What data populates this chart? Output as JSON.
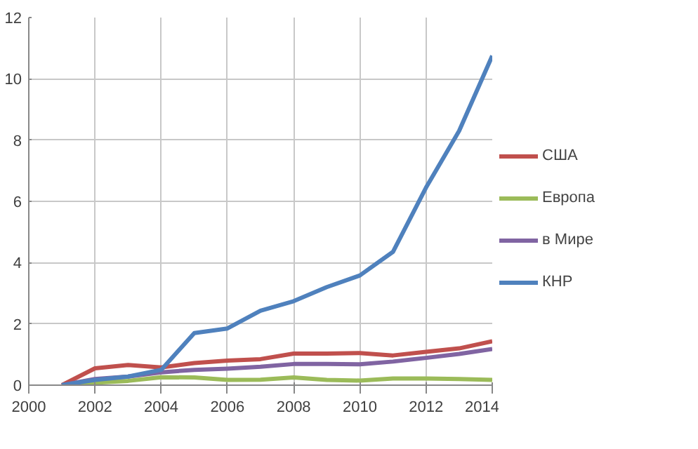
{
  "chart_data": {
    "type": "line",
    "x": [
      2001,
      2002,
      2003,
      2004,
      2005,
      2006,
      2007,
      2008,
      2009,
      2010,
      2011,
      2012,
      2013,
      2014
    ],
    "series": [
      {
        "name": "США",
        "color": "#c0504d",
        "values": [
          0,
          0.55,
          0.66,
          0.58,
          0.72,
          0.8,
          0.85,
          1.03,
          1.03,
          1.05,
          0.97,
          1.09,
          1.2,
          1.43
        ]
      },
      {
        "name": "Европа",
        "color": "#9bbb59",
        "values": [
          0,
          0.08,
          0.14,
          0.26,
          0.25,
          0.17,
          0.18,
          0.25,
          0.17,
          0.15,
          0.22,
          0.22,
          0.2,
          0.17
        ]
      },
      {
        "name": "в Мире",
        "color": "#8064a2",
        "values": [
          0,
          0.2,
          0.28,
          0.42,
          0.5,
          0.54,
          0.6,
          0.69,
          0.69,
          0.68,
          0.77,
          0.89,
          1.02,
          1.18
        ]
      },
      {
        "name": "КНР",
        "color": "#4f81bd",
        "values": [
          0,
          0.17,
          0.28,
          0.5,
          1.7,
          1.85,
          2.43,
          2.74,
          3.2,
          3.58,
          4.35,
          6.45,
          8.3,
          10.75
        ]
      }
    ],
    "xlim": [
      2000,
      2014
    ],
    "xticks": [
      2000,
      2002,
      2004,
      2006,
      2008,
      2010,
      2012,
      2014
    ],
    "ylim": [
      0,
      12
    ],
    "yticks": [
      0,
      2,
      4,
      6,
      8,
      10,
      12
    ],
    "grid": true,
    "legend": "right",
    "marker": "none",
    "line_style": "solid"
  }
}
